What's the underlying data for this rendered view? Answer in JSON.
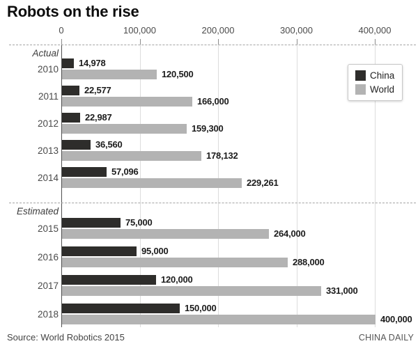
{
  "title": "Robots on the rise",
  "footer": {
    "source": "Source: World Robotics 2015",
    "credit": "CHINA DAILY"
  },
  "colors": {
    "china_bar": "#2e2d2b",
    "world_bar": "#b3b3b3",
    "gridline": "#dcdcdc",
    "axis_line": "#4f4f4f"
  },
  "chart_data": {
    "type": "bar",
    "orientation": "horizontal",
    "title": "Robots on the rise",
    "xlabel": "",
    "ylabel": "",
    "xlim": [
      0,
      400000
    ],
    "grid": "vertical",
    "legend_position": "top-right",
    "x_ticks": [
      {
        "label": "0",
        "value": 0
      },
      {
        "label": "100,000",
        "value": 100000
      },
      {
        "label": "200,000",
        "value": 200000
      },
      {
        "label": "300,000",
        "value": 300000
      },
      {
        "label": "400,000",
        "value": 400000
      }
    ],
    "categories": [
      "2010",
      "2011",
      "2012",
      "2013",
      "2014",
      "2015",
      "2016",
      "2017",
      "2018"
    ],
    "series": [
      {
        "name": "China",
        "color": "#2e2d2b",
        "values": [
          14978,
          22577,
          22987,
          36560,
          57096,
          75000,
          95000,
          120000,
          150000
        ],
        "labels": [
          "14,978",
          "22,577",
          "22,987",
          "36,560",
          "57,096",
          "75,000",
          "95,000",
          "120,000",
          "150,000"
        ]
      },
      {
        "name": "World",
        "color": "#b3b3b3",
        "values": [
          120500,
          166000,
          159300,
          178132,
          229261,
          264000,
          288000,
          331000,
          400000
        ],
        "labels": [
          "120,500",
          "166,000",
          "159,300",
          "178,132",
          "229,261",
          "264,000",
          "288,000",
          "331,000",
          "400,000"
        ]
      }
    ],
    "sections": [
      {
        "label": "Actual",
        "categories": [
          "2010",
          "2011",
          "2012",
          "2013",
          "2014"
        ]
      },
      {
        "label": "Estimated",
        "categories": [
          "2015",
          "2016",
          "2017",
          "2018"
        ]
      }
    ]
  }
}
